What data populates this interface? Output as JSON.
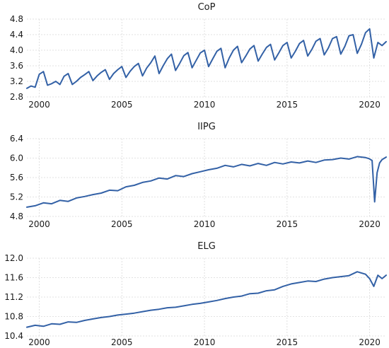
{
  "chart_data": [
    {
      "type": "line",
      "title": "CoP",
      "xlabel": "",
      "ylabel": "",
      "xlim": [
        1999.25,
        2021.0
      ],
      "ylim": [
        2.8,
        4.8
      ],
      "xticks": [
        2000,
        2005,
        2010,
        2015,
        2020
      ],
      "xtick_labels": [
        "2000",
        "2005",
        "2010",
        "2015",
        "2020"
      ],
      "yticks": [
        2.8,
        3.2,
        3.6,
        4.0,
        4.4,
        4.8
      ],
      "ytick_labels": [
        "2.8",
        "3.2",
        "3.6",
        "4.0",
        "4.4",
        "4.8"
      ],
      "grid": true,
      "color": "#3361a6",
      "series": [
        {
          "x": [
            1999.25,
            1999.5,
            1999.75,
            2000.0,
            2000.25,
            2000.5,
            2000.75,
            2001.0,
            2001.25,
            2001.5,
            2001.75,
            2002.0,
            2002.25,
            2002.5,
            2002.75,
            2003.0,
            2003.25,
            2003.5,
            2003.75,
            2004.0,
            2004.25,
            2004.5,
            2004.75,
            2005.0,
            2005.25,
            2005.5,
            2005.75,
            2006.0,
            2006.25,
            2006.5,
            2006.75,
            2007.0,
            2007.25,
            2007.5,
            2007.75,
            2008.0,
            2008.25,
            2008.5,
            2008.75,
            2009.0,
            2009.25,
            2009.5,
            2009.75,
            2010.0,
            2010.25,
            2010.5,
            2010.75,
            2011.0,
            2011.25,
            2011.5,
            2011.75,
            2012.0,
            2012.25,
            2012.5,
            2012.75,
            2013.0,
            2013.25,
            2013.5,
            2013.75,
            2014.0,
            2014.25,
            2014.5,
            2014.75,
            2015.0,
            2015.25,
            2015.5,
            2015.75,
            2016.0,
            2016.25,
            2016.5,
            2016.75,
            2017.0,
            2017.25,
            2017.5,
            2017.75,
            2018.0,
            2018.25,
            2018.5,
            2018.75,
            2019.0,
            2019.25,
            2019.5,
            2019.75,
            2020.0,
            2020.25,
            2020.5,
            2020.75,
            2021.0
          ],
          "values": [
            3.02,
            3.08,
            3.05,
            3.38,
            3.45,
            3.1,
            3.14,
            3.2,
            3.12,
            3.33,
            3.4,
            3.12,
            3.2,
            3.3,
            3.37,
            3.45,
            3.22,
            3.34,
            3.43,
            3.5,
            3.25,
            3.4,
            3.5,
            3.58,
            3.3,
            3.46,
            3.58,
            3.66,
            3.34,
            3.54,
            3.68,
            3.85,
            3.4,
            3.6,
            3.78,
            3.9,
            3.48,
            3.66,
            3.86,
            3.94,
            3.55,
            3.74,
            3.93,
            4.0,
            3.58,
            3.78,
            3.97,
            4.05,
            3.55,
            3.8,
            4.0,
            4.1,
            3.68,
            3.85,
            4.03,
            4.12,
            3.72,
            3.9,
            4.07,
            4.15,
            3.75,
            3.93,
            4.12,
            4.2,
            3.8,
            3.97,
            4.17,
            4.25,
            3.85,
            4.02,
            4.23,
            4.3,
            3.88,
            4.06,
            4.3,
            4.35,
            3.9,
            4.1,
            4.37,
            4.4,
            3.92,
            4.15,
            4.45,
            4.55,
            3.8,
            4.2,
            4.12,
            4.22
          ]
        }
      ]
    },
    {
      "type": "line",
      "title": "IIPG",
      "xlabel": "",
      "ylabel": "",
      "xlim": [
        1999.25,
        2021.0
      ],
      "ylim": [
        4.8,
        6.4
      ],
      "xticks": [
        2000,
        2005,
        2010,
        2015,
        2020
      ],
      "xtick_labels": [
        "2000",
        "2005",
        "2010",
        "2015",
        "2020"
      ],
      "yticks": [
        4.8,
        5.2,
        5.6,
        6.0,
        6.4
      ],
      "ytick_labels": [
        "4.8",
        "5.2",
        "5.6",
        "6.0",
        "6.4"
      ],
      "grid": true,
      "color": "#3361a6",
      "series": [
        {
          "x": [
            1999.25,
            1999.75,
            2000.25,
            2000.75,
            2001.25,
            2001.75,
            2002.25,
            2002.75,
            2003.25,
            2003.75,
            2004.25,
            2004.75,
            2005.25,
            2005.75,
            2006.25,
            2006.75,
            2007.25,
            2007.75,
            2008.25,
            2008.75,
            2009.25,
            2009.75,
            2010.25,
            2010.75,
            2011.25,
            2011.75,
            2012.25,
            2012.75,
            2013.25,
            2013.75,
            2014.25,
            2014.75,
            2015.25,
            2015.75,
            2016.25,
            2016.75,
            2017.25,
            2017.75,
            2018.25,
            2018.75,
            2019.25,
            2019.75,
            2019.95,
            2020.15,
            2020.3,
            2020.45,
            2020.6,
            2020.75,
            2021.0
          ],
          "values": [
            4.99,
            5.02,
            5.08,
            5.06,
            5.13,
            5.11,
            5.18,
            5.21,
            5.25,
            5.28,
            5.34,
            5.33,
            5.41,
            5.44,
            5.5,
            5.53,
            5.59,
            5.57,
            5.64,
            5.62,
            5.68,
            5.72,
            5.76,
            5.79,
            5.85,
            5.82,
            5.87,
            5.84,
            5.89,
            5.85,
            5.91,
            5.88,
            5.92,
            5.9,
            5.94,
            5.91,
            5.96,
            5.97,
            6.0,
            5.98,
            6.03,
            6.01,
            5.99,
            5.95,
            5.1,
            5.7,
            5.9,
            5.97,
            6.02
          ]
        }
      ]
    },
    {
      "type": "line",
      "title": "ELG",
      "xlabel": "",
      "ylabel": "",
      "xlim": [
        1999.25,
        2021.0
      ],
      "ylim": [
        10.4,
        12.0
      ],
      "xticks": [
        2000,
        2005,
        2010,
        2015,
        2020
      ],
      "xtick_labels": [
        "2000",
        "2005",
        "2010",
        "2015",
        "2020"
      ],
      "yticks": [
        10.4,
        10.8,
        11.2,
        11.6,
        12.0
      ],
      "ytick_labels": [
        "10.4",
        "10.8",
        "11.2",
        "11.6",
        "12.0"
      ],
      "grid": true,
      "color": "#3361a6",
      "series": [
        {
          "x": [
            1999.25,
            1999.75,
            2000.25,
            2000.75,
            2001.25,
            2001.75,
            2002.25,
            2002.75,
            2003.25,
            2003.75,
            2004.25,
            2004.75,
            2005.25,
            2005.75,
            2006.25,
            2006.75,
            2007.25,
            2007.75,
            2008.25,
            2008.75,
            2009.25,
            2009.75,
            2010.25,
            2010.75,
            2011.25,
            2011.75,
            2012.25,
            2012.75,
            2013.25,
            2013.75,
            2014.25,
            2014.75,
            2015.25,
            2015.75,
            2016.25,
            2016.75,
            2017.25,
            2017.75,
            2018.25,
            2018.75,
            2019.25,
            2019.75,
            2020.0,
            2020.25,
            2020.5,
            2020.75,
            2021.0
          ],
          "values": [
            10.58,
            10.62,
            10.6,
            10.65,
            10.64,
            10.69,
            10.68,
            10.72,
            10.75,
            10.78,
            10.8,
            10.83,
            10.85,
            10.87,
            10.9,
            10.93,
            10.95,
            10.98,
            10.99,
            11.02,
            11.05,
            11.07,
            11.1,
            11.13,
            11.17,
            11.2,
            11.22,
            11.27,
            11.28,
            11.33,
            11.35,
            11.42,
            11.47,
            11.5,
            11.53,
            11.52,
            11.57,
            11.6,
            11.62,
            11.64,
            11.72,
            11.67,
            11.58,
            11.42,
            11.65,
            11.58,
            11.65
          ]
        }
      ]
    }
  ]
}
